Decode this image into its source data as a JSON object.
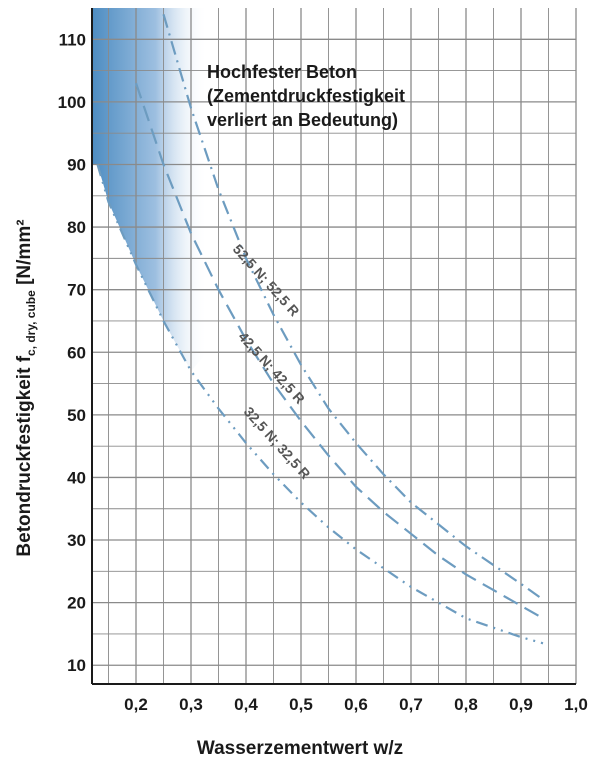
{
  "chart_data": {
    "type": "line",
    "xlabel": "Wasserzementwert w/z",
    "ylabel": "Betondruckfestigkeit f",
    "ylabel_sub": "c, dry, cube",
    "ylabel_unit": " [N/mm²",
    "xlim": [
      0.12,
      1.0
    ],
    "ylim": [
      7,
      115
    ],
    "x_ticks": [
      "0,2",
      "0,3",
      "0,4",
      "0,5",
      "0,6",
      "0,7",
      "0,8",
      "0,9",
      "1,0"
    ],
    "y_ticks": [
      "10",
      "20",
      "30",
      "40",
      "50",
      "60",
      "70",
      "80",
      "90",
      "100",
      "110"
    ],
    "grid": true,
    "annotation": [
      "Hochfester Beton",
      "(Zementdruckfestigkeit",
      "verliert an Bedeutung)"
    ],
    "series": [
      {
        "name": "52,5 N; 52,5 R",
        "x": [
          0.25,
          0.3,
          0.35,
          0.4,
          0.45,
          0.5,
          0.55,
          0.6,
          0.65,
          0.7,
          0.75,
          0.8,
          0.85,
          0.9,
          0.94
        ],
        "y": [
          114,
          99,
          86,
          75,
          66,
          58,
          51,
          45.5,
          40.5,
          36,
          32.5,
          29,
          26,
          23,
          20.5
        ]
      },
      {
        "name": "42,5 N; 42,5 R",
        "x": [
          0.2,
          0.25,
          0.3,
          0.35,
          0.4,
          0.45,
          0.5,
          0.55,
          0.6,
          0.65,
          0.7,
          0.75,
          0.8,
          0.85,
          0.9,
          0.94
        ],
        "y": [
          103,
          90,
          79,
          70,
          62,
          55,
          49,
          43.5,
          38.5,
          34.5,
          31,
          27.5,
          24.5,
          22,
          19.5,
          17.5
        ]
      },
      {
        "name": "32,5 N; 32,5 R",
        "x": [
          0.13,
          0.15,
          0.2,
          0.25,
          0.3,
          0.35,
          0.4,
          0.45,
          0.5,
          0.55,
          0.6,
          0.65,
          0.7,
          0.75,
          0.8,
          0.85,
          0.9,
          0.94
        ],
        "y": [
          90,
          84,
          74,
          65,
          57,
          51,
          45.5,
          40.5,
          36,
          32,
          28.5,
          25.5,
          22.5,
          20,
          17.5,
          16,
          14.5,
          13.5
        ]
      }
    ],
    "colors": {
      "curve": "#6d9cc0",
      "shade_dark": "#4e8dc2",
      "shade_light": "#ffffff",
      "grid": "#8a8a8a",
      "axis": "#1a1a1a"
    }
  }
}
